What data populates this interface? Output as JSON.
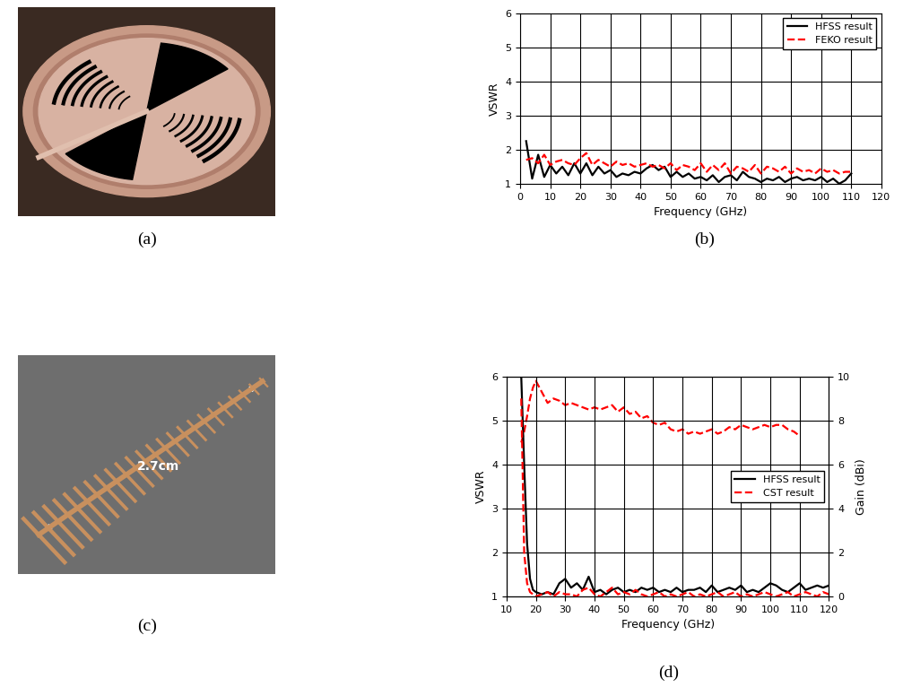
{
  "figure": {
    "captions": [
      "(a)",
      "(b)",
      "(c)",
      "(d)"
    ],
    "image_c_label": "2.7cm"
  },
  "chart_data": [
    {
      "type": "line",
      "xlabel": "Frequency (GHz)",
      "ylabel": "VSWR",
      "xlim": [
        0,
        120
      ],
      "xticks": [
        0,
        10,
        20,
        30,
        40,
        50,
        60,
        70,
        80,
        90,
        100,
        110,
        120
      ],
      "ylim": [
        1,
        6
      ],
      "yticks": [
        1,
        2,
        3,
        4,
        5,
        6
      ],
      "grid": true,
      "legend": "upper right",
      "series": [
        {
          "name": "HFSS result",
          "color": "#000000",
          "line_style": "solid",
          "x": [
            2,
            4,
            6,
            8,
            10,
            12,
            14,
            16,
            18,
            20,
            22,
            24,
            26,
            28,
            30,
            32,
            34,
            36,
            38,
            40,
            42,
            44,
            46,
            48,
            50,
            52,
            54,
            56,
            58,
            60,
            62,
            64,
            66,
            68,
            70,
            72,
            74,
            76,
            78,
            80,
            82,
            84,
            86,
            88,
            90,
            92,
            94,
            96,
            98,
            100,
            102,
            104,
            106,
            108,
            110
          ],
          "values": [
            2.25,
            1.15,
            1.85,
            1.2,
            1.55,
            1.3,
            1.5,
            1.25,
            1.6,
            1.3,
            1.6,
            1.25,
            1.5,
            1.3,
            1.4,
            1.2,
            1.3,
            1.25,
            1.35,
            1.3,
            1.45,
            1.55,
            1.4,
            1.5,
            1.2,
            1.35,
            1.2,
            1.3,
            1.15,
            1.2,
            1.1,
            1.25,
            1.05,
            1.2,
            1.25,
            1.1,
            1.35,
            1.2,
            1.15,
            1.05,
            1.15,
            1.1,
            1.2,
            1.05,
            1.15,
            1.2,
            1.1,
            1.15,
            1.1,
            1.2,
            1.05,
            1.15,
            1.0,
            1.1,
            1.3
          ]
        },
        {
          "name": "FEKO result",
          "color": "#ff0000",
          "line_style": "dashed",
          "x": [
            2,
            4,
            6,
            8,
            10,
            12,
            14,
            16,
            18,
            20,
            22,
            24,
            26,
            28,
            30,
            32,
            34,
            36,
            38,
            40,
            42,
            44,
            46,
            48,
            50,
            52,
            54,
            56,
            58,
            60,
            62,
            64,
            66,
            68,
            70,
            72,
            74,
            76,
            78,
            80,
            82,
            84,
            86,
            88,
            90,
            92,
            94,
            96,
            98,
            100,
            102,
            104,
            106,
            108,
            110
          ],
          "values": [
            1.7,
            1.75,
            1.6,
            1.85,
            1.55,
            1.65,
            1.7,
            1.6,
            1.55,
            1.75,
            1.9,
            1.55,
            1.7,
            1.6,
            1.5,
            1.65,
            1.55,
            1.6,
            1.5,
            1.55,
            1.6,
            1.5,
            1.55,
            1.45,
            1.6,
            1.4,
            1.55,
            1.5,
            1.4,
            1.6,
            1.35,
            1.55,
            1.4,
            1.6,
            1.3,
            1.5,
            1.45,
            1.35,
            1.55,
            1.3,
            1.5,
            1.45,
            1.35,
            1.5,
            1.3,
            1.45,
            1.35,
            1.4,
            1.3,
            1.45,
            1.35,
            1.4,
            1.3,
            1.35,
            1.35
          ]
        }
      ]
    },
    {
      "type": "line",
      "xlabel": "Frequency (GHz)",
      "ylabel": "VSWR",
      "y2label": "Gain (dBi)",
      "xlim": [
        10,
        120
      ],
      "xticks": [
        10,
        20,
        30,
        40,
        50,
        60,
        70,
        80,
        90,
        100,
        110,
        120
      ],
      "ylim": [
        1,
        6
      ],
      "yticks": [
        1,
        2,
        3,
        4,
        5,
        6
      ],
      "y2lim": [
        0,
        10
      ],
      "y2ticks": [
        0,
        2,
        4,
        6,
        8,
        10
      ],
      "grid": true,
      "legend": "center right",
      "series": [
        {
          "name": "HFSS result",
          "color": "#000000",
          "line_style": "solid",
          "x": [
            15,
            16,
            17,
            18,
            19,
            20,
            22,
            24,
            26,
            28,
            30,
            32,
            34,
            36,
            38,
            40,
            42,
            44,
            46,
            48,
            50,
            52,
            54,
            56,
            58,
            60,
            62,
            64,
            66,
            68,
            70,
            72,
            74,
            76,
            78,
            80,
            82,
            84,
            86,
            88,
            90,
            92,
            94,
            96,
            98,
            100,
            102,
            104,
            106,
            108,
            110,
            112,
            114,
            116,
            118,
            120
          ],
          "values": [
            6.0,
            4.0,
            2.2,
            1.4,
            1.15,
            1.1,
            1.05,
            1.1,
            1.05,
            1.3,
            1.4,
            1.2,
            1.3,
            1.15,
            1.45,
            1.1,
            1.15,
            1.05,
            1.15,
            1.2,
            1.1,
            1.15,
            1.1,
            1.2,
            1.15,
            1.2,
            1.1,
            1.15,
            1.1,
            1.2,
            1.1,
            1.15,
            1.15,
            1.2,
            1.1,
            1.25,
            1.1,
            1.15,
            1.2,
            1.15,
            1.25,
            1.1,
            1.15,
            1.1,
            1.2,
            1.3,
            1.25,
            1.15,
            1.1,
            1.2,
            1.3,
            1.15,
            1.2,
            1.25,
            1.2,
            1.25
          ]
        },
        {
          "name": "CST result",
          "color": "#ff0000",
          "line_style": "dashed",
          "x": [
            15,
            16,
            17,
            18,
            19,
            20,
            22,
            24,
            26,
            28,
            30,
            32,
            34,
            36,
            38,
            40,
            42,
            44,
            46,
            48,
            50,
            52,
            54,
            56,
            58,
            60,
            62,
            64,
            66,
            68,
            70,
            72,
            74,
            76,
            78,
            80,
            82,
            84,
            86,
            88,
            90,
            92,
            94,
            96,
            98,
            100,
            102,
            104,
            106,
            108,
            110,
            112,
            114,
            116,
            118,
            120
          ],
          "values": [
            5.5,
            2.0,
            1.3,
            1.1,
            1.05,
            1.0,
            1.05,
            1.1,
            1.0,
            1.1,
            1.05,
            1.05,
            1.0,
            1.15,
            1.2,
            1.05,
            1.0,
            1.1,
            1.2,
            1.05,
            1.1,
            1.05,
            1.15,
            1.05,
            1.0,
            1.05,
            1.1,
            1.0,
            1.05,
            1.0,
            1.05,
            1.1,
            1.0,
            1.05,
            1.0,
            1.05,
            1.1,
            1.0,
            1.05,
            1.1,
            1.0,
            1.05,
            1.0,
            1.05,
            1.1,
            1.05,
            1.0,
            1.05,
            1.1,
            1.0,
            1.05,
            1.1,
            1.05,
            1.0,
            1.1,
            1.05
          ]
        },
        {
          "name": "CST result",
          "color": "#ff0000",
          "line_style": "dashed",
          "axis": "y2",
          "x": [
            15,
            16,
            17,
            18,
            19,
            20,
            22,
            24,
            26,
            28,
            30,
            32,
            34,
            36,
            38,
            40,
            42,
            44,
            46,
            48,
            50,
            52,
            54,
            56,
            58,
            60,
            62,
            64,
            66,
            68,
            70,
            72,
            74,
            76,
            78,
            80,
            82,
            84,
            86,
            88,
            90,
            92,
            94,
            96,
            98,
            100,
            102,
            104,
            106,
            108,
            110
          ],
          "values": [
            7.0,
            7.5,
            8.2,
            9.0,
            9.5,
            9.8,
            9.3,
            8.8,
            9.0,
            8.9,
            8.7,
            8.8,
            8.7,
            8.6,
            8.5,
            8.6,
            8.5,
            8.6,
            8.7,
            8.4,
            8.6,
            8.3,
            8.4,
            8.1,
            8.2,
            7.9,
            7.8,
            7.9,
            7.6,
            7.5,
            7.6,
            7.4,
            7.5,
            7.4,
            7.5,
            7.6,
            7.4,
            7.5,
            7.7,
            7.6,
            7.8,
            7.7,
            7.6,
            7.7,
            7.8,
            7.7,
            7.8,
            7.8,
            7.6,
            7.5,
            7.3
          ]
        }
      ]
    }
  ]
}
